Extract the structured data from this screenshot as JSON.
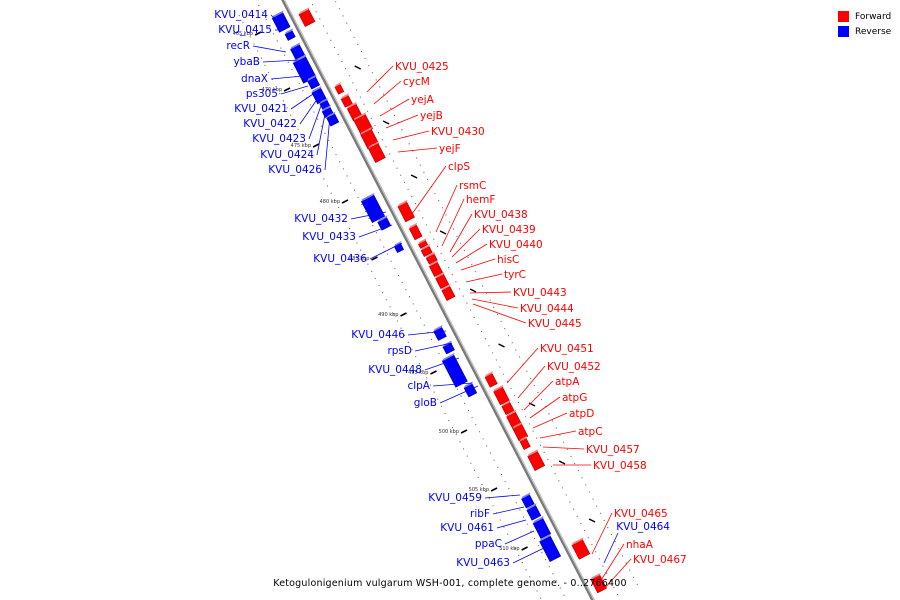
{
  "title": "Ketogulonigenium vulgarum WSH-001, complete genome. - 0..2766400",
  "legend": [
    {
      "label": "Forward",
      "color": "#ff0000"
    },
    {
      "label": "Reverse",
      "color": "#0000ff"
    }
  ],
  "colors": {
    "forward": "#ff0000",
    "reverse": "#0000ff",
    "backbone": "#7a7a7a"
  },
  "ticks": [
    "465 kbp",
    "470 kbp",
    "475 kbp",
    "480 kbp",
    "485 kbp",
    "490 kbp",
    "495 kbp",
    "500 kbp",
    "505 kbp",
    "510 kbp"
  ],
  "forward_genes": [
    "KVU_0425",
    "cycM",
    "yejA",
    "yejB",
    "KVU_0430",
    "yejF",
    "clpS",
    "rsmC",
    "hemF",
    "KVU_0438",
    "KVU_0439",
    "KVU_0440",
    "hisC",
    "tyrC",
    "KVU_0443",
    "KVU_0444",
    "KVU_0445",
    "KVU_0451",
    "KVU_0452",
    "atpA",
    "atpG",
    "atpD",
    "atpC",
    "KVU_0457",
    "KVU_0458",
    "KVU_0465",
    "nhaA",
    "KVU_0467"
  ],
  "reverse_genes": [
    "KVU_0414",
    "KVU_0415",
    "recR",
    "ybaB",
    "dnaX",
    "ps305",
    "KVU_0421",
    "KVU_0422",
    "KVU_0423",
    "KVU_0424",
    "KVU_0426",
    "KVU_0432",
    "KVU_0433",
    "KVU_0436",
    "KVU_0446",
    "rpsD",
    "KVU_0448",
    "clpA",
    "gloB",
    "KVU_0459",
    "ribF",
    "KVU_0461",
    "ppaC",
    "KVU_0463",
    "KVU_0464"
  ]
}
